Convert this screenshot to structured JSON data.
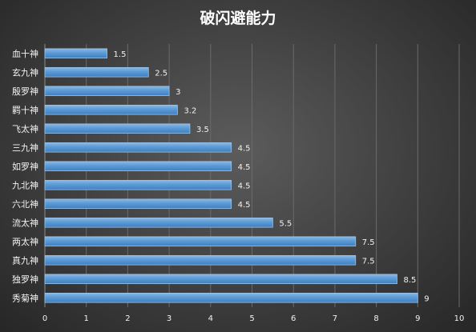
{
  "chart_data": {
    "type": "bar",
    "orientation": "horizontal",
    "title": "破闪避能力",
    "categories": [
      "血十神",
      "玄九神",
      "殷罗神",
      "羁十神",
      "飞太神",
      "三九神",
      "如罗神",
      "九北神",
      "六北神",
      "流太神",
      "两太神",
      "真九神",
      "独罗神",
      "秀菊神"
    ],
    "values": [
      1.5,
      2.5,
      3,
      3.2,
      3.5,
      4.5,
      4.5,
      4.5,
      4.5,
      5.5,
      7.5,
      7.5,
      8.5,
      9
    ],
    "data_labels": [
      "1.5",
      "2.5",
      "3",
      "3.2",
      "3.5",
      "4.5",
      "4.5",
      "4.5",
      "4.5",
      "5.5",
      "7.5",
      "7.5",
      "8.5",
      "9"
    ],
    "xlim": [
      0,
      10
    ],
    "x_ticks": [
      0,
      1,
      2,
      3,
      4,
      5,
      6,
      7,
      8,
      9,
      10
    ],
    "grid": true,
    "legend": "none",
    "bar_color": "#5b9bd5",
    "bar_edge_color": "#9dc3e6"
  }
}
